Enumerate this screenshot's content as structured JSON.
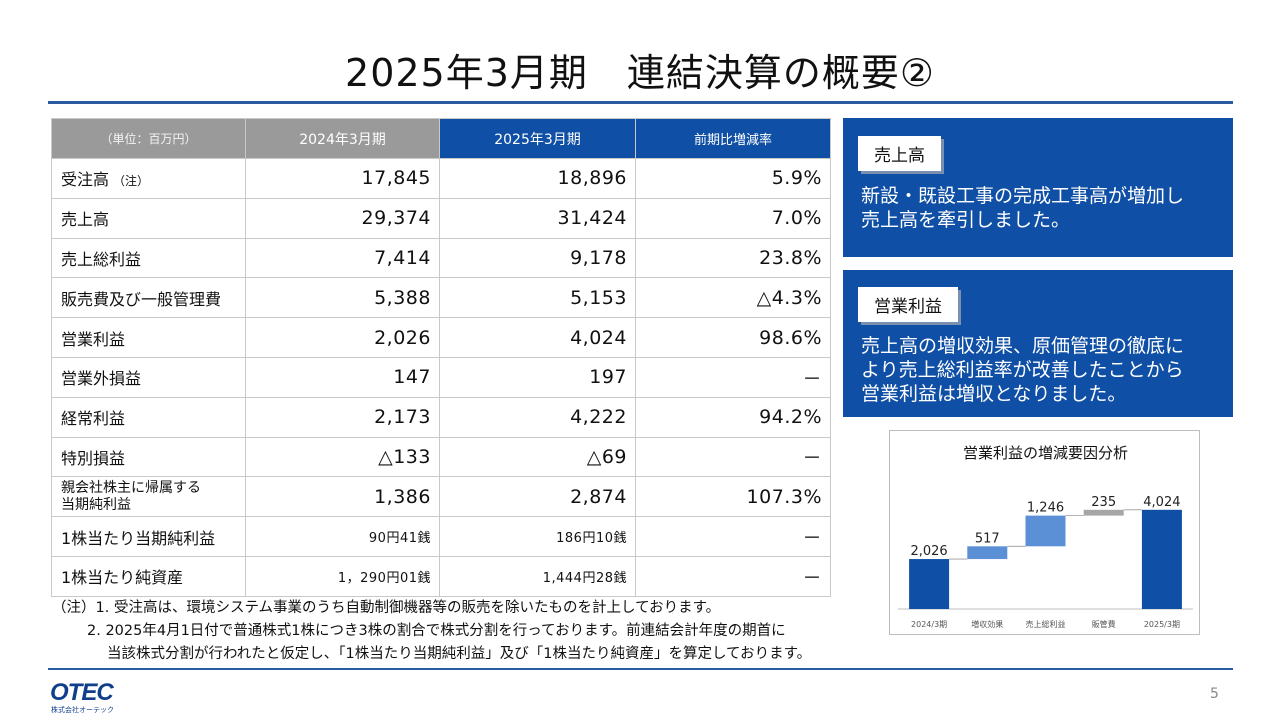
{
  "title": "2025年3月期　連結決算の概要②",
  "table": {
    "headers": [
      "（単位：百万円）",
      "2024年3月期",
      "2025年3月期",
      "前期比増減率"
    ],
    "rows": [
      {
        "label": "受注高",
        "note": "（注）",
        "prev": "17,845",
        "curr": "18,896",
        "rate": "5.9%"
      },
      {
        "label": "売上高",
        "prev": "29,374",
        "curr": "31,424",
        "rate": "7.0%"
      },
      {
        "label": "売上総利益",
        "prev": "7,414",
        "curr": "9,178",
        "rate": "23.8%"
      },
      {
        "label": "販売費及び一般管理費",
        "prev": "5,388",
        "curr": "5,153",
        "rate": "△4.3%"
      },
      {
        "label": "営業利益",
        "prev": "2,026",
        "curr": "4,024",
        "rate": "98.6%"
      },
      {
        "label": "営業外損益",
        "prev": "147",
        "curr": "197",
        "rate": "－"
      },
      {
        "label": "経常利益",
        "prev": "2,173",
        "curr": "4,222",
        "rate": "94.2%"
      },
      {
        "label": "特別損益",
        "prev": "△133",
        "curr": "△69",
        "rate": "－"
      },
      {
        "label_line1": "親会社株主に帰属する",
        "label_line2": "当期純利益",
        "prev": "1,386",
        "curr": "2,874",
        "rate": "107.3%"
      },
      {
        "label": "1株当たり当期純利益",
        "prev": "90円41銭",
        "curr": "186円10銭",
        "rate": "－"
      },
      {
        "label": "1株当たり純資産",
        "prev": "1，290円01銭",
        "curr": "1,444円28銭",
        "rate": "－"
      }
    ]
  },
  "notes": [
    "（注）1. 受注高は、環境システム事業のうち自動制御機器等の販売を除いたものを計上しております。",
    "2. 2025年4月1日付で普通株式1株につき3株の割合で株式分割を行っております。前連結会計年度の期首に",
    "当該株式分割が行われたと仮定し、「1株当たり当期純利益」及び「1株当たり純資産」を算定しております。"
  ],
  "panels": [
    {
      "tag": "売上高",
      "line1": "新設・既設工事の完成工事高が増加し",
      "line2": "売上高を牽引しました。"
    },
    {
      "tag": "営業利益",
      "line1": "売上高の増収効果、原価管理の徹底に",
      "line2": "より売上総利益率が改善したことから",
      "line3": "営業利益は増収となりました。"
    }
  ],
  "chart_data": {
    "type": "bar",
    "subtype": "waterfall",
    "title": "営業利益の増減要因分析",
    "categories": [
      "2024/3期",
      "増収効果",
      "売上総利益",
      "販管費",
      "2025/3期"
    ],
    "values": [
      2026,
      517,
      1246,
      235,
      4024
    ],
    "labels": [
      "2,026",
      "517",
      "1,246",
      "235",
      "4,024"
    ],
    "kinds": [
      "total",
      "delta",
      "delta",
      "delta",
      "total"
    ],
    "colors": [
      "#0f4fa5",
      "#5b8fd6",
      "#5b8fd6",
      "#a6a6a6",
      "#0f4fa5"
    ],
    "ylim": [
      0,
      4300
    ]
  },
  "footer": {
    "logo_text": "OTEC",
    "logo_sub": "株式会社オーテック",
    "page": "5"
  },
  "colors": {
    "accent": "#0f4fa5",
    "rule": "#2a5aa0",
    "header_gray": "#9a9a9a"
  }
}
